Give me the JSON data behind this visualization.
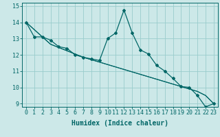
{
  "xlabel": "Humidex (Indice chaleur)",
  "bg_color": "#cce8e8",
  "grid_color": "#99cccc",
  "line_color": "#006666",
  "xlim": [
    -0.5,
    23.5
  ],
  "ylim": [
    8.8,
    15.2
  ],
  "yticks": [
    9,
    10,
    11,
    12,
    13,
    14,
    15
  ],
  "xticks": [
    0,
    1,
    2,
    3,
    4,
    5,
    6,
    7,
    8,
    9,
    10,
    11,
    12,
    13,
    14,
    15,
    16,
    17,
    18,
    19,
    20,
    21,
    22,
    23
  ],
  "series_main": [
    14.0,
    13.1,
    13.1,
    12.9,
    12.5,
    12.4,
    12.0,
    11.85,
    11.75,
    11.65,
    13.0,
    13.35,
    14.75,
    13.35,
    12.3,
    12.05,
    11.35,
    11.0,
    10.55,
    10.05,
    10.0,
    9.5,
    8.8,
    9.0
  ],
  "series_linear1": [
    14.0,
    13.55,
    13.1,
    12.65,
    12.45,
    12.25,
    12.05,
    11.85,
    11.7,
    11.55,
    11.4,
    11.25,
    11.1,
    10.95,
    10.8,
    10.65,
    10.5,
    10.35,
    10.2,
    10.05,
    9.9,
    9.75,
    9.5,
    9.0
  ],
  "series_linear2": [
    14.0,
    13.55,
    13.1,
    12.65,
    12.45,
    12.25,
    12.05,
    11.85,
    11.7,
    11.55,
    11.4,
    11.25,
    11.1,
    10.95,
    10.8,
    10.65,
    10.5,
    10.35,
    10.2,
    10.05,
    9.9,
    9.75,
    9.5,
    9.0
  ],
  "xlabel_fontsize": 7,
  "tick_fontsize": 6
}
